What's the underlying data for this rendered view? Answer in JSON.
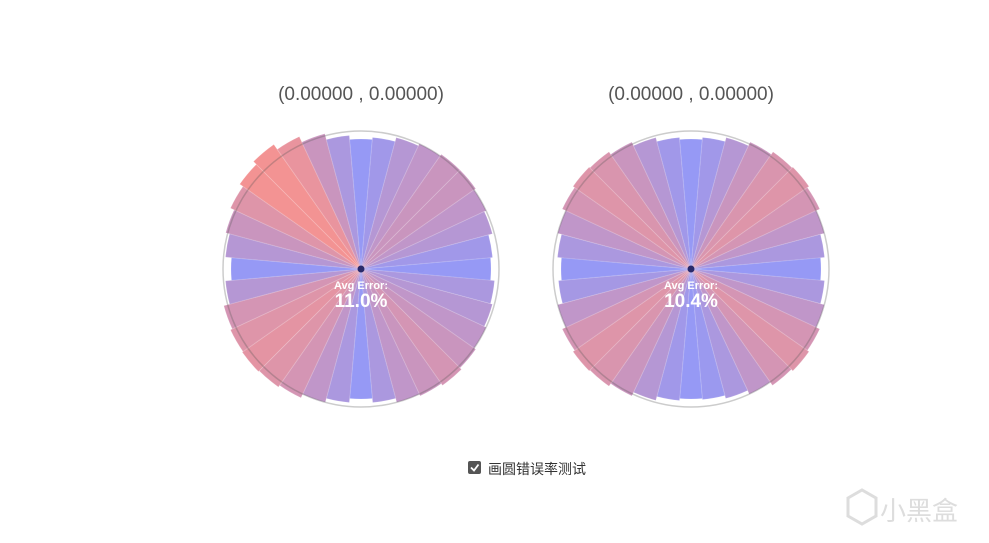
{
  "panels": [
    {
      "coords": "(0.00000 , 0.00000)",
      "avg_label": "Avg Error:",
      "avg_value": "11.0%",
      "wedge_errors": [
        2,
        6,
        8,
        10,
        12,
        14,
        12,
        10,
        6,
        2,
        6,
        10,
        14,
        16,
        17,
        16,
        14,
        8,
        2,
        8,
        12,
        16,
        20,
        24,
        18,
        12,
        6,
        2,
        4,
        8,
        10,
        12,
        12,
        10,
        8,
        4
      ]
    },
    {
      "coords": "(0.00000 , 0.00000)",
      "avg_label": "Avg Error:",
      "avg_value": "10.4%",
      "wedge_errors": [
        2,
        6,
        10,
        14,
        16,
        14,
        10,
        6,
        3,
        2,
        4,
        8,
        12,
        15,
        16,
        14,
        10,
        5,
        2,
        6,
        10,
        14,
        16,
        15,
        12,
        8,
        4,
        2,
        4,
        8,
        12,
        15,
        16,
        14,
        10,
        6
      ]
    }
  ],
  "checkbox_label": "画圆错误率测试",
  "watermark": "小黑盒"
}
